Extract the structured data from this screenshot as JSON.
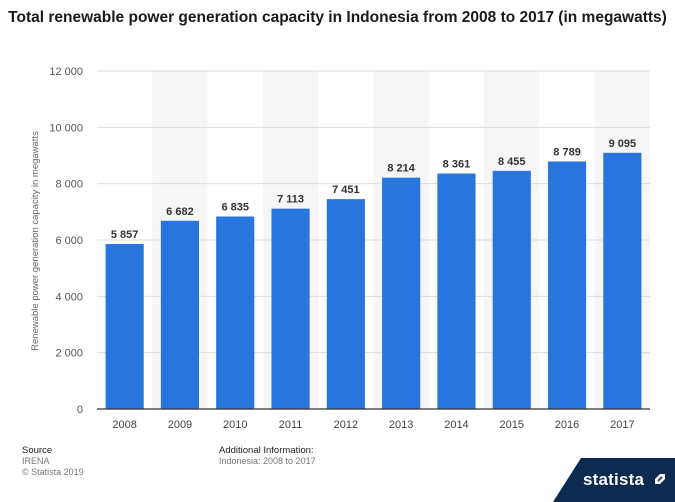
{
  "chart_data": {
    "type": "bar",
    "title": "Total renewable power generation capacity in Indonesia from 2008 to 2017 (in megawatts)",
    "xlabel": "",
    "ylabel": "Renewable power generation capacity in megawatts",
    "categories": [
      "2008",
      "2009",
      "2010",
      "2011",
      "2012",
      "2013",
      "2014",
      "2015",
      "2016",
      "2017"
    ],
    "values": [
      5857,
      6682,
      6835,
      7113,
      7451,
      8214,
      8361,
      8455,
      8789,
      9095
    ],
    "value_labels": [
      "5 857",
      "6 682",
      "6 835",
      "7 113",
      "7 451",
      "8 214",
      "8 361",
      "8 455",
      "8 789",
      "9 095"
    ],
    "ylim": [
      0,
      12000
    ],
    "yticks": [
      0,
      2000,
      4000,
      6000,
      8000,
      10000,
      12000
    ],
    "ytick_labels": [
      "0",
      "2 000",
      "4 000",
      "6 000",
      "8 000",
      "10 000",
      "12 000"
    ],
    "grid": true,
    "colors": {
      "bar": "#2876dd",
      "grid": "#dcdcdc",
      "band": "#f6f6f6"
    }
  },
  "footer": {
    "source_heading": "Source",
    "source_name": "IRENA",
    "copyright": "© Statista 2019",
    "additional_heading": "Additional Information:",
    "additional_text": "Indonesia: 2008 to 2017"
  },
  "brand": {
    "name": "statista",
    "icon": "statista-arrow-icon",
    "color": "#0d2b4f"
  }
}
